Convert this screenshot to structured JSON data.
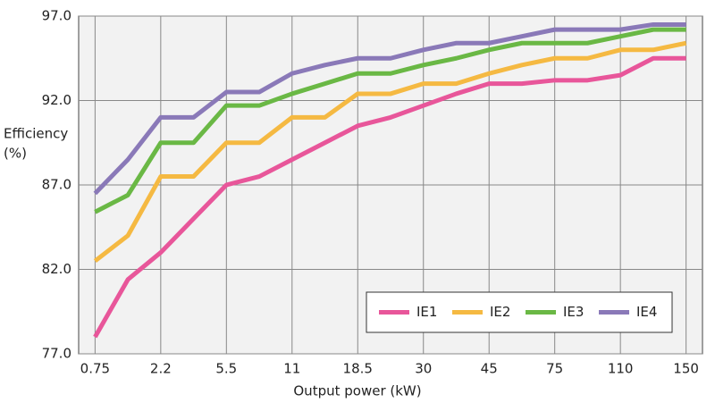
{
  "chart_data": {
    "type": "line",
    "xlabel": "Output power (kW)",
    "ylabel": [
      "Efficiency",
      "(%)"
    ],
    "categories": [
      "0.75",
      null,
      "2.2",
      null,
      "5.5",
      null,
      "11",
      null,
      "18.5",
      null,
      "30",
      null,
      "45",
      null,
      "75",
      null,
      "110",
      null,
      "150"
    ],
    "series": [
      {
        "name": "IE1",
        "color": "#e8569a",
        "values": [
          78.0,
          81.4,
          83.0,
          85.0,
          87.0,
          87.5,
          88.5,
          89.5,
          90.5,
          91.0,
          91.7,
          92.4,
          93.0,
          93.0,
          93.2,
          93.2,
          93.5,
          94.5,
          94.5
        ]
      },
      {
        "name": "IE2",
        "color": "#f5b942",
        "values": [
          82.5,
          84.0,
          87.5,
          87.5,
          89.5,
          89.5,
          91.0,
          91.0,
          92.4,
          92.4,
          93.0,
          93.0,
          93.6,
          94.1,
          94.5,
          94.5,
          95.0,
          95.0,
          95.4
        ]
      },
      {
        "name": "IE3",
        "color": "#6ab845",
        "values": [
          85.4,
          86.4,
          89.5,
          89.5,
          91.7,
          91.7,
          92.4,
          93.0,
          93.6,
          93.6,
          94.1,
          94.5,
          95.0,
          95.4,
          95.4,
          95.4,
          95.8,
          96.2,
          96.2
        ]
      },
      {
        "name": "IE4",
        "color": "#8a79b8",
        "values": [
          86.5,
          88.5,
          91.0,
          91.0,
          92.5,
          92.5,
          93.6,
          94.1,
          94.5,
          94.5,
          95.0,
          95.4,
          95.4,
          95.8,
          96.2,
          96.2,
          96.2,
          96.5,
          96.5
        ]
      }
    ],
    "ylim": [
      77,
      97
    ],
    "yticks": [
      {
        "value": 77,
        "label": "77.0"
      },
      {
        "value": 82,
        "label": "82.0"
      },
      {
        "value": 87,
        "label": "87.0"
      },
      {
        "value": 92,
        "label": "92.0"
      },
      {
        "value": 97,
        "label": "97.0"
      }
    ],
    "grid": true,
    "legend": "lower right"
  }
}
